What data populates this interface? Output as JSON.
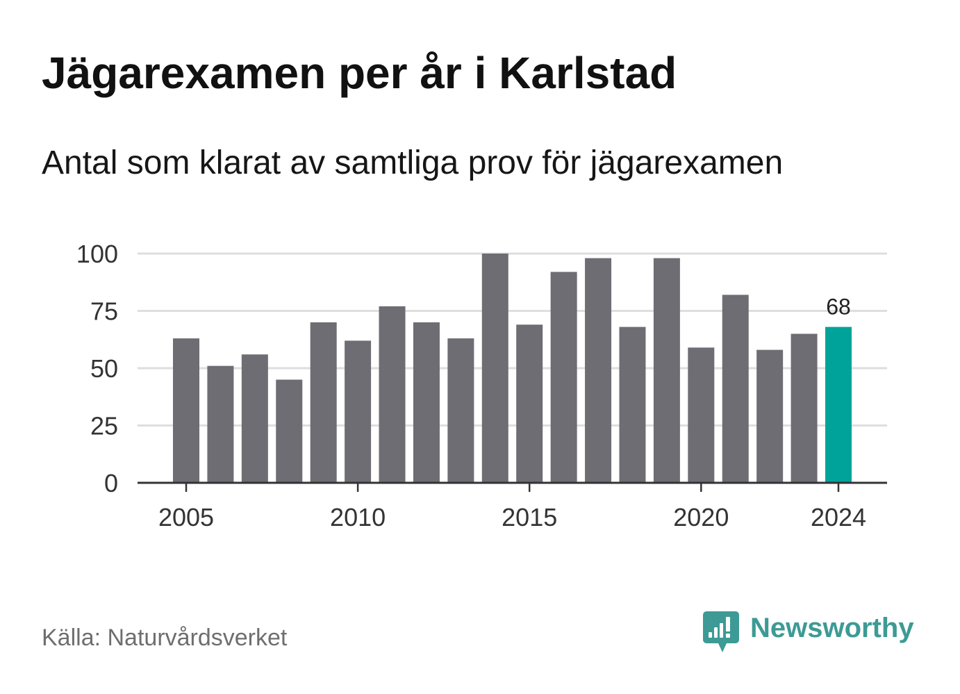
{
  "title": "Jägarexamen per år i Karlstad",
  "subtitle": "Antal som klarat av samtliga prov för jägarexamen",
  "source": "Källa: Naturvårdsverket",
  "brand": {
    "name": "Newsworthy",
    "icon": "newsworthy-logo-icon"
  },
  "colors": {
    "bar": "#6e6d73",
    "highlight": "#00a399",
    "grid": "#dedede",
    "axis": "#333333",
    "brand": "#3d9a95"
  },
  "chart_data": {
    "type": "bar",
    "x": [
      2005,
      2006,
      2007,
      2008,
      2009,
      2010,
      2011,
      2012,
      2013,
      2014,
      2015,
      2016,
      2017,
      2018,
      2019,
      2020,
      2021,
      2022,
      2023,
      2024
    ],
    "values": [
      63,
      51,
      56,
      45,
      70,
      62,
      77,
      70,
      63,
      100,
      69,
      92,
      98,
      68,
      98,
      59,
      82,
      58,
      65,
      68
    ],
    "x_ticks": [
      2005,
      2010,
      2015,
      2020,
      2024
    ],
    "y_ticks": [
      100,
      75,
      50,
      25,
      0
    ],
    "ylim": [
      0,
      100
    ],
    "grid": true,
    "highlight": {
      "x": 2024,
      "label": "68"
    }
  }
}
